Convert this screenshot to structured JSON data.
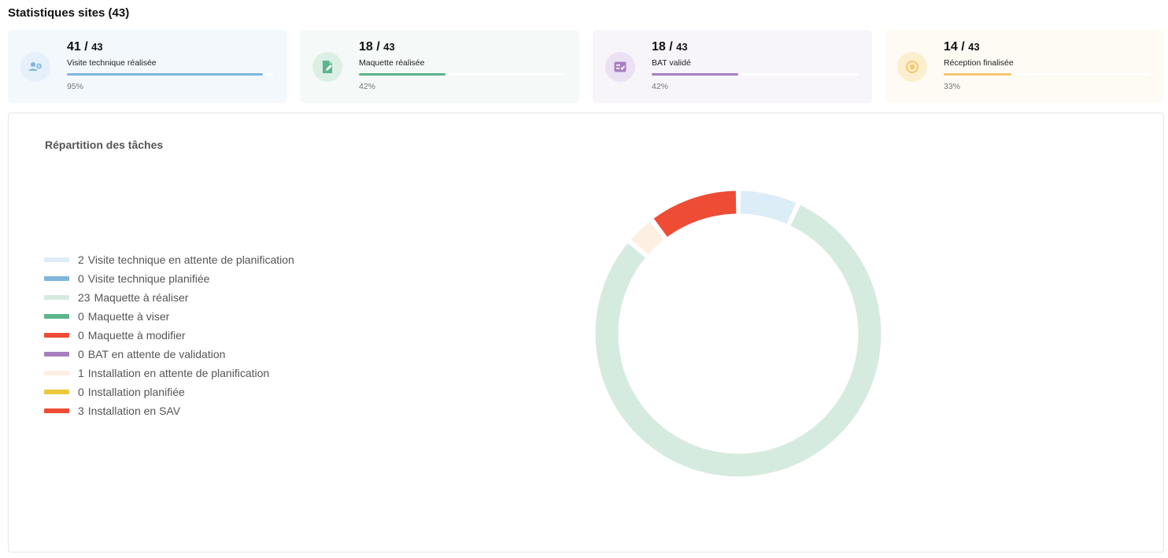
{
  "header": {
    "title": "Statistiques sites (43)"
  },
  "cards": [
    {
      "count": "41",
      "separator": " / ",
      "total": "43",
      "label": "Visite technique réalisée",
      "percent_text": "95%",
      "progress": 0.95,
      "icon": "users-gear-icon",
      "bg": "#f3f8fd",
      "accent": "#7eb7de",
      "icon_bg": "#e5f0fa"
    },
    {
      "count": "18",
      "separator": " / ",
      "total": "43",
      "label": "Maquette réalisée",
      "percent_text": "42%",
      "progress": 0.42,
      "icon": "document-edit-icon",
      "bg": "#f5f9f7",
      "accent": "#5cb48b",
      "icon_bg": "#dcefe5"
    },
    {
      "count": "18",
      "separator": " / ",
      "total": "43",
      "label": "BAT validé",
      "percent_text": "42%",
      "progress": 0.42,
      "icon": "checklist-icon",
      "bg": "#f7f4fa",
      "accent": "#a77fbf",
      "icon_bg": "#ece1f4"
    },
    {
      "count": "14",
      "separator": " / ",
      "total": "43",
      "label": "Réception finalisée",
      "percent_text": "33%",
      "progress": 0.33,
      "icon": "coin-badge-icon",
      "bg": "#fdfbf4",
      "accent": "#f4c76c",
      "icon_bg": "#fcefcf"
    }
  ],
  "chart": {
    "title": "Répartition des tâches"
  },
  "chart_data": {
    "type": "pie",
    "donut": true,
    "title": "Répartition des tâches",
    "legend_position": "left",
    "series": [
      {
        "name": "Visite technique en attente de planification",
        "value": 2,
        "color": "#dcedf8"
      },
      {
        "name": "Visite technique planifiée",
        "value": 0,
        "color": "#7eb7de"
      },
      {
        "name": "Maquette à réaliser",
        "value": 23,
        "color": "#d6ebe0"
      },
      {
        "name": "Maquette à viser",
        "value": 0,
        "color": "#5cb48b"
      },
      {
        "name": "Maquette à modifier",
        "value": 0,
        "color": "#ee4c35"
      },
      {
        "name": "BAT en attente de validation",
        "value": 0,
        "color": "#a77fbf"
      },
      {
        "name": "Installation en attente de planification",
        "value": 1,
        "color": "#fdf0e2"
      },
      {
        "name": "Installation planifiée",
        "value": 0,
        "color": "#ecc93c"
      },
      {
        "name": "Installation en SAV",
        "value": 3,
        "color": "#ee4c35"
      }
    ]
  }
}
